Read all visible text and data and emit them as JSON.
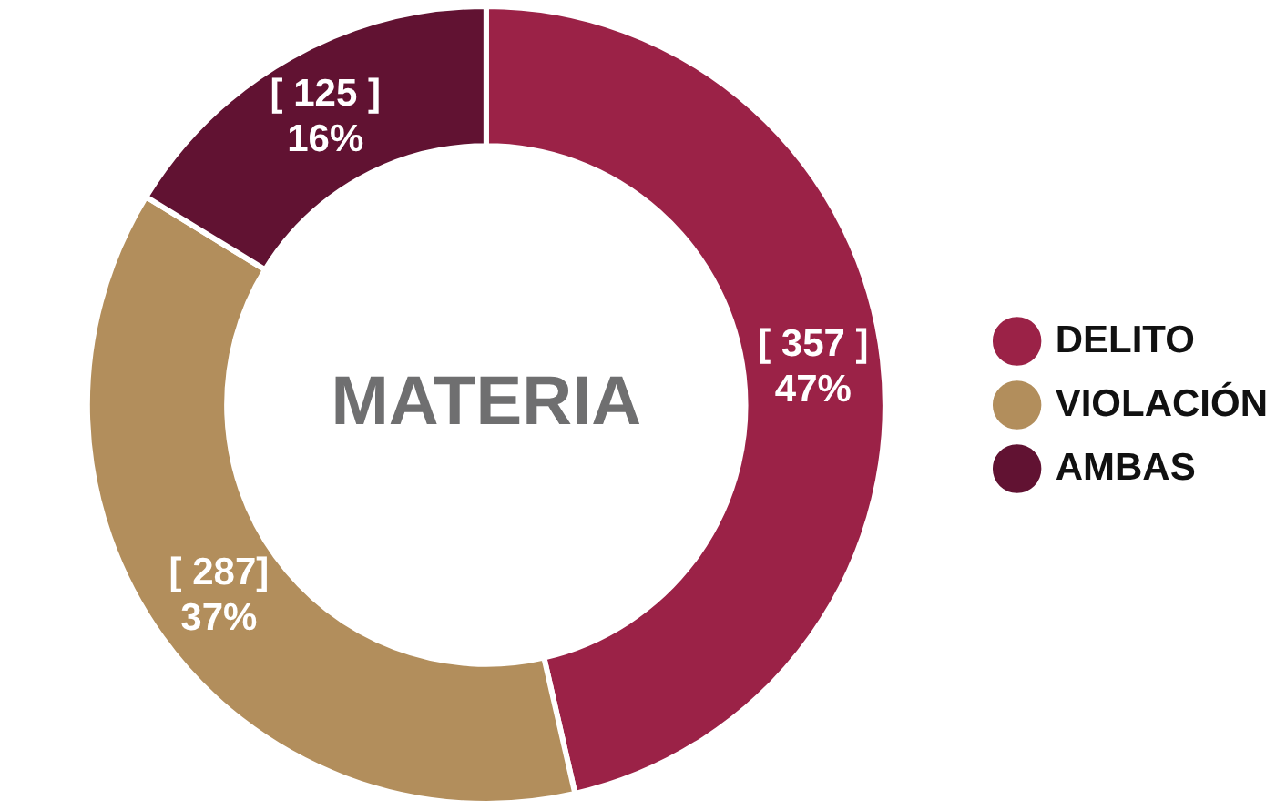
{
  "chart_data": {
    "type": "donut",
    "title": "MATERIA",
    "categories": [
      "DELITO",
      "VIOLACIÓN",
      "AMBAS"
    ],
    "values": [
      357,
      287,
      125
    ],
    "colors": [
      "#9b2247",
      "#b28e5c",
      "#611232"
    ],
    "value_labels": [
      "[ 357 ]\n47%",
      "[ 287]\n37%",
      "[ 125 ]\n16%"
    ],
    "legend": "right"
  }
}
